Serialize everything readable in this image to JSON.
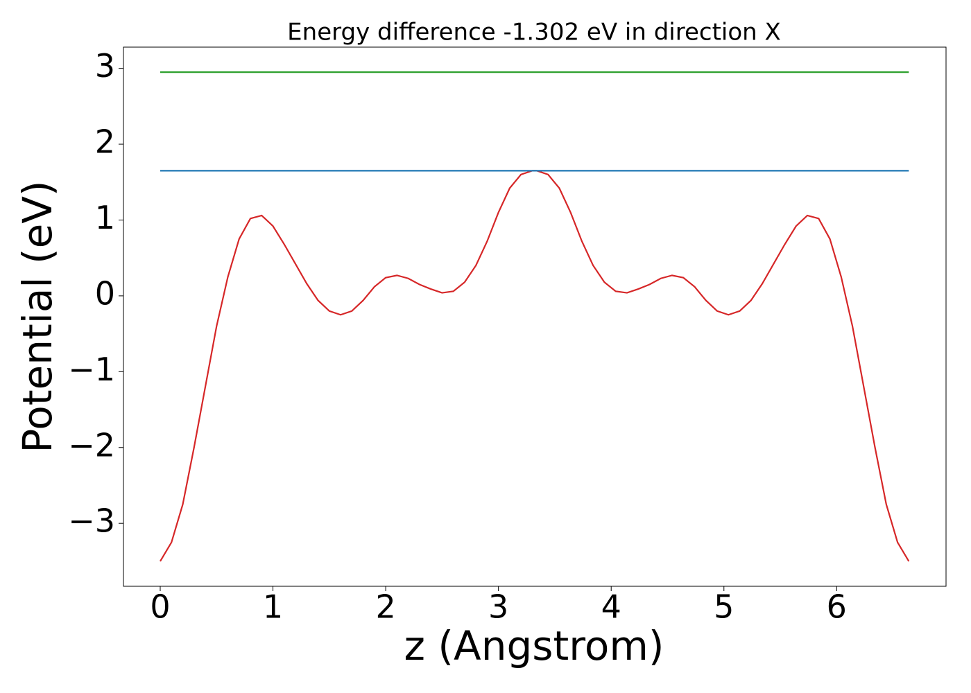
{
  "chart_data": {
    "type": "line",
    "title": "Energy difference -1.302 eV in direction X",
    "xlabel": "z (Angstrom)",
    "ylabel": "Potential (eV)",
    "xlim": [
      -0.326,
      6.97
    ],
    "ylim": [
      -3.83,
      3.28
    ],
    "xticks": [
      0,
      1,
      2,
      3,
      4,
      5,
      6
    ],
    "yticks": [
      {
        "value": -3,
        "label": "−3"
      },
      {
        "value": -2,
        "label": "−2"
      },
      {
        "value": -1,
        "label": "−1"
      },
      0,
      1,
      2,
      3
    ],
    "grid": false,
    "series": [
      {
        "color": "#d62728",
        "x": [
          0,
          0.1,
          0.2,
          0.3,
          0.4,
          0.5,
          0.6,
          0.7,
          0.8,
          0.9,
          1.0,
          1.1,
          1.2,
          1.3,
          1.4,
          1.5,
          1.6,
          1.7,
          1.8,
          1.9,
          2.0,
          2.1,
          2.2,
          2.3,
          2.4,
          2.5,
          2.6,
          2.7,
          2.8,
          2.9,
          3.0,
          3.1,
          3.2,
          3.3,
          3.34,
          3.44,
          3.54,
          3.64,
          3.74,
          3.84,
          3.94,
          4.04,
          4.14,
          4.24,
          4.34,
          4.44,
          4.54,
          4.64,
          4.74,
          4.84,
          4.94,
          5.04,
          5.14,
          5.24,
          5.34,
          5.44,
          5.54,
          5.64,
          5.74,
          5.84,
          5.94,
          6.04,
          6.14,
          6.24,
          6.34,
          6.44,
          6.54,
          6.64
        ],
        "values": [
          -3.5,
          -3.25,
          -2.75,
          -2.0,
          -1.2,
          -0.4,
          0.25,
          0.75,
          1.02,
          1.06,
          0.92,
          0.68,
          0.42,
          0.16,
          -0.06,
          -0.2,
          -0.25,
          -0.2,
          -0.06,
          0.12,
          0.24,
          0.27,
          0.23,
          0.15,
          0.09,
          0.04,
          0.06,
          0.18,
          0.4,
          0.72,
          1.1,
          1.42,
          1.6,
          1.65,
          1.65,
          1.6,
          1.42,
          1.1,
          0.72,
          0.4,
          0.18,
          0.06,
          0.04,
          0.09,
          0.15,
          0.23,
          0.27,
          0.24,
          0.12,
          -0.06,
          -0.2,
          -0.25,
          -0.2,
          -0.06,
          0.16,
          0.42,
          0.68,
          0.92,
          1.06,
          1.02,
          0.75,
          0.25,
          -0.4,
          -1.2,
          -2.0,
          -2.75,
          -3.25,
          -3.5
        ]
      },
      {
        "color": "#1f77b4",
        "x": [
          0,
          6.64
        ],
        "values": [
          1.65,
          1.65
        ]
      },
      {
        "color": "#2ca02c",
        "x": [
          0,
          6.64
        ],
        "values": [
          2.95,
          2.95
        ]
      }
    ]
  }
}
